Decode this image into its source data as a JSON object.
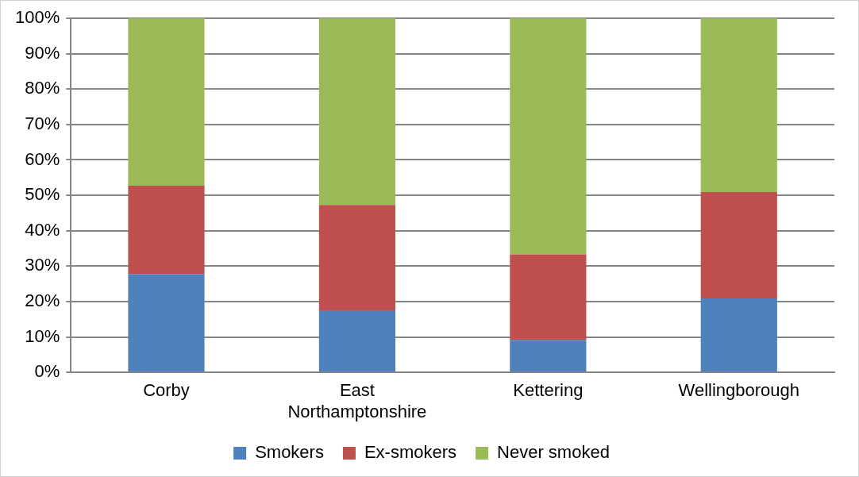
{
  "chart_data": {
    "type": "bar",
    "stacked": true,
    "categories": [
      "Corby",
      "East Northamptonshire",
      "Kettering",
      "Wellingborough"
    ],
    "series": [
      {
        "name": "Smokers",
        "color": "#4f81bd",
        "values": [
          27.8,
          17.5,
          9.2,
          20.9
        ]
      },
      {
        "name": "Ex-smokers",
        "color": "#c0504d",
        "values": [
          24.9,
          29.8,
          24.1,
          30.0
        ]
      },
      {
        "name": "Never smoked",
        "color": "#9bbb59",
        "values": [
          47.3,
          52.7,
          66.7,
          49.1
        ]
      }
    ],
    "ylim": [
      0,
      100
    ],
    "yticks": [
      {
        "value": 0,
        "label": "0%"
      },
      {
        "value": 10,
        "label": "10%"
      },
      {
        "value": 20,
        "label": "20%"
      },
      {
        "value": 30,
        "label": "30%"
      },
      {
        "value": 40,
        "label": "40%"
      },
      {
        "value": 50,
        "label": "50%"
      },
      {
        "value": 60,
        "label": "60%"
      },
      {
        "value": 70,
        "label": "70%"
      },
      {
        "value": 80,
        "label": "80%"
      },
      {
        "value": 90,
        "label": "90%"
      },
      {
        "value": 100,
        "label": "100%"
      }
    ],
    "grid": "y",
    "legend": "bottom"
  }
}
